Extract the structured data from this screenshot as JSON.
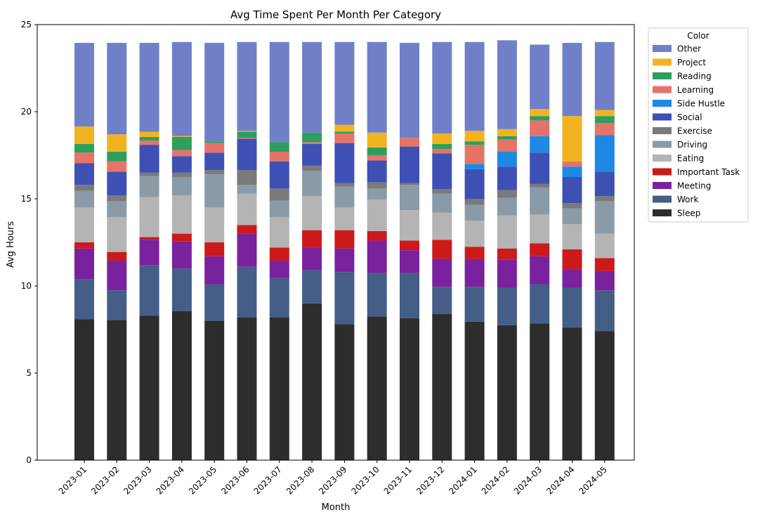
{
  "chart_data": {
    "type": "bar",
    "stacked": true,
    "title": "Avg Time Spent Per Month Per Category",
    "xlabel": "Month",
    "ylabel": "Avg Hours",
    "ylim": [
      0,
      25
    ],
    "yticks": [
      0,
      5,
      10,
      15,
      20,
      25
    ],
    "grid": false,
    "legend_title": "Color",
    "legend_position": "outside right, top",
    "categories": [
      "2023-01",
      "2023-02",
      "2023-03",
      "2023-04",
      "2023-05",
      "2023-06",
      "2023-07",
      "2023-08",
      "2023-09",
      "2023-10",
      "2023-11",
      "2023-12",
      "2024-01",
      "2024-02",
      "2024-03",
      "2024-04",
      "2024-05"
    ],
    "series": [
      {
        "name": "Sleep",
        "color": "#2d2d2d",
        "values": [
          8.1,
          8.05,
          8.3,
          8.55,
          8.0,
          8.2,
          8.2,
          9.0,
          7.8,
          8.25,
          8.15,
          8.4,
          7.95,
          7.75,
          7.85,
          7.6,
          7.4
        ]
      },
      {
        "name": "Work",
        "color": "#445e87",
        "values": [
          2.3,
          1.7,
          2.9,
          2.45,
          2.1,
          2.9,
          2.25,
          1.9,
          3.0,
          2.5,
          2.6,
          1.55,
          2.0,
          2.15,
          2.25,
          2.3,
          2.35
        ]
      },
      {
        "name": "Meeting",
        "color": "#7a219e",
        "values": [
          1.75,
          1.7,
          1.45,
          1.55,
          1.6,
          1.9,
          1.0,
          1.3,
          1.35,
          1.85,
          1.3,
          1.6,
          1.6,
          1.6,
          1.6,
          1.05,
          1.1
        ]
      },
      {
        "name": "Important Task",
        "color": "#cc1a1a",
        "values": [
          0.35,
          0.5,
          0.15,
          0.45,
          0.8,
          0.5,
          0.75,
          1.0,
          1.05,
          0.55,
          0.55,
          1.1,
          0.7,
          0.65,
          0.75,
          1.15,
          0.75
        ]
      },
      {
        "name": "Eating",
        "color": "#b4b4b4",
        "values": [
          2.0,
          2.0,
          2.3,
          2.2,
          2.0,
          1.8,
          1.75,
          1.95,
          1.3,
          1.8,
          1.75,
          1.55,
          1.5,
          1.9,
          1.65,
          1.45,
          1.4
        ]
      },
      {
        "name": "Driving",
        "color": "#8a9ba7",
        "values": [
          0.95,
          0.9,
          1.2,
          1.05,
          1.9,
          0.5,
          0.95,
          1.45,
          1.2,
          0.65,
          1.45,
          1.1,
          0.9,
          1.0,
          1.55,
          0.9,
          1.85
        ]
      },
      {
        "name": "Exercise",
        "color": "#7a7a7a",
        "values": [
          0.35,
          0.35,
          0.2,
          0.25,
          0.25,
          0.85,
          0.7,
          0.3,
          0.2,
          0.35,
          0.1,
          0.25,
          0.35,
          0.45,
          0.2,
          0.3,
          0.3
        ]
      },
      {
        "name": "Social",
        "color": "#3f50b5",
        "values": [
          1.25,
          1.35,
          1.6,
          0.95,
          1.0,
          1.8,
          1.55,
          1.25,
          2.3,
          1.25,
          2.1,
          2.05,
          1.7,
          1.35,
          1.8,
          1.5,
          1.4
        ]
      },
      {
        "name": "Side Hustle",
        "color": "#1e88e5",
        "values": [
          0,
          0,
          0,
          0,
          0,
          0,
          0,
          0,
          0,
          0,
          0,
          0,
          0.3,
          0.85,
          0.95,
          0.6,
          2.1
        ]
      },
      {
        "name": "Learning",
        "color": "#e57368",
        "values": [
          0.6,
          0.6,
          0.25,
          0.35,
          0.55,
          0.05,
          0.55,
          0.1,
          0.55,
          0.3,
          0.5,
          0.25,
          1.1,
          0.7,
          0.9,
          0.3,
          0.7
        ]
      },
      {
        "name": "Reading",
        "color": "#2e9e5e",
        "values": [
          0.5,
          0.55,
          0.2,
          0.75,
          0.1,
          0.35,
          0.55,
          0.55,
          0.1,
          0.45,
          0,
          0.3,
          0.2,
          0.2,
          0.25,
          0,
          0.4
        ]
      },
      {
        "name": "Project",
        "color": "#f2b321",
        "values": [
          1.0,
          1.0,
          0.3,
          0.05,
          0,
          0.05,
          0,
          0,
          0.4,
          0.85,
          0,
          0.6,
          0.6,
          0.4,
          0.4,
          2.6,
          0.35
        ]
      },
      {
        "name": "Other",
        "color": "#7080c8",
        "values": [
          4.8,
          5.25,
          5.1,
          5.4,
          5.65,
          5.1,
          5.75,
          5.2,
          4.75,
          5.2,
          5.45,
          5.25,
          5.1,
          5.1,
          3.7,
          4.2,
          3.9
        ]
      }
    ]
  }
}
